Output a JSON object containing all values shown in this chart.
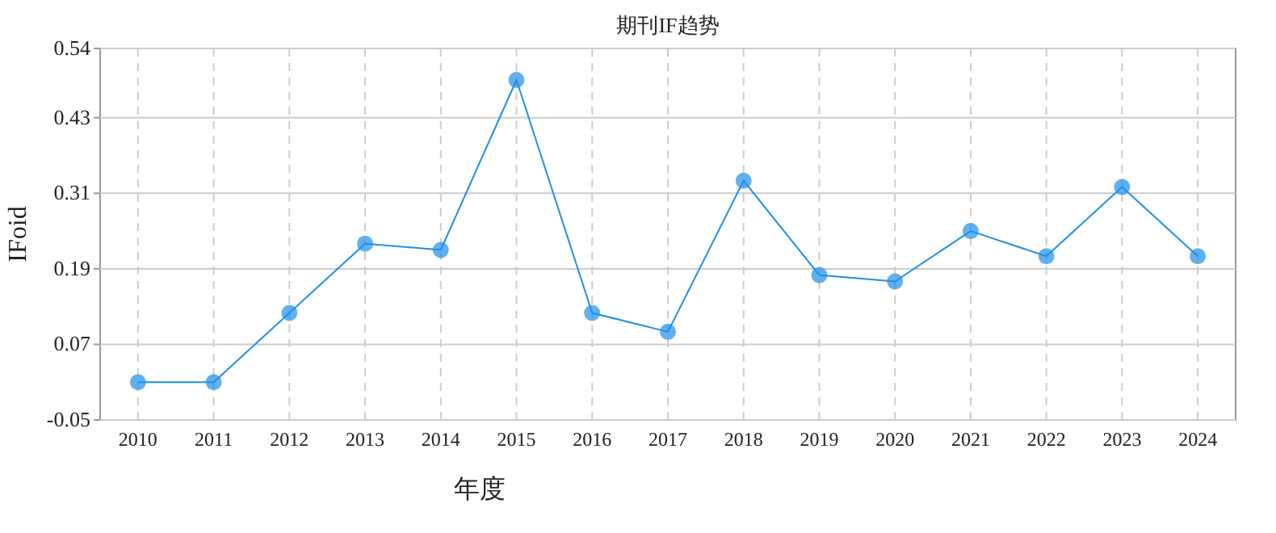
{
  "chart_data": {
    "type": "line",
    "title": "期刊IF趋势",
    "xlabel": "年度",
    "ylabel": "IFoid",
    "categories": [
      "2010",
      "2011",
      "2012",
      "2013",
      "2014",
      "2015",
      "2016",
      "2017",
      "2018",
      "2019",
      "2020",
      "2021",
      "2022",
      "2023",
      "2024"
    ],
    "series": [
      {
        "color": "#1e8fe8",
        "values": [
          0.01,
          0.01,
          0.12,
          0.23,
          0.22,
          0.49,
          0.12,
          0.09,
          0.33,
          0.18,
          0.17,
          0.25,
          0.21,
          0.32,
          0.21
        ]
      }
    ],
    "ylim": [
      -0.05,
      0.54
    ],
    "yticks": [
      -0.05,
      0.07,
      0.19,
      0.31,
      0.43,
      0.54
    ],
    "grid": true,
    "marker": "circle",
    "line_style": "solid"
  }
}
